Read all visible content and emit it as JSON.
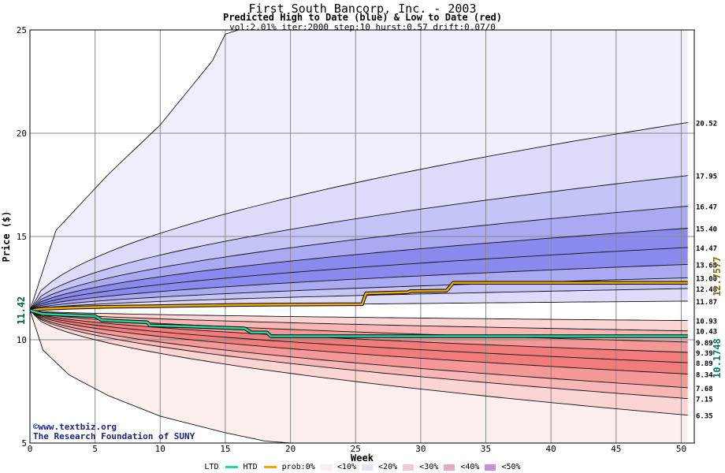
{
  "header": {
    "title": "First South Bancorp, Inc. - 2003",
    "subtitle": "Predicted High to Date (blue) &  Low to Date (red)",
    "params": "vol:2.01% iter:2000 step:10 hurst:0.57 drift:0.07/0"
  },
  "credit": {
    "site": "©www.textbiz.org",
    "org": "The Research Foundation of SUNY"
  },
  "legend": {
    "ltd": "LTD",
    "htd": "HTD",
    "prob": "prob:0%",
    "p10": "<10%",
    "p20": "<20%",
    "p30": "<30%",
    "p40": "<40%",
    "p50": "<50%"
  },
  "colors": {
    "htd_line": "#f0a800",
    "ltd_line": "#20d8a0",
    "blue_bands": [
      "#f0f0fc",
      "#dcdcfa",
      "#c4c4f6",
      "#aaaaf2",
      "#8a8aee"
    ],
    "red_bands": [
      "#fdeeee",
      "#fbd4d4",
      "#f8b6b6",
      "#f59898",
      "#f27c7c"
    ],
    "start_label": "#006633",
    "htd_label": "#8a6d00",
    "ltd_label": "#008060"
  },
  "chart_data": {
    "type": "line",
    "title": "First South Bancorp, Inc. - 2003",
    "xlabel": "Week",
    "ylabel": "Price ($)",
    "xlim": [
      0,
      51
    ],
    "ylim": [
      5,
      25
    ],
    "xticks": [
      0,
      5,
      10,
      15,
      20,
      25,
      30,
      35,
      40,
      45,
      50
    ],
    "yticks": [
      5,
      10,
      15,
      20,
      25
    ],
    "grid": true,
    "start_price": 11.42,
    "start_label": "11.42",
    "current_high_label": "12.7577",
    "current_low_label": "10.1748",
    "quantile_end_values": [
      20.52,
      17.95,
      16.47,
      15.4,
      14.47,
      13.65,
      13.0,
      12.48,
      11.87,
      10.93,
      10.43,
      9.89,
      9.39,
      8.89,
      8.34,
      7.68,
      7.15,
      6.35
    ],
    "quantile_labels": [
      "20.52",
      "17.95",
      "16.47",
      "15.40",
      "14.47",
      "13.65",
      "13.00",
      "12.48",
      "11.87",
      "10.93",
      "10.43",
      "9.89",
      "9.39",
      "8.89",
      "8.34",
      "7.68",
      "7.15",
      "6.35"
    ],
    "outer_envelope": {
      "upper": [
        [
          0,
          11.42
        ],
        [
          2,
          15.3
        ],
        [
          6,
          18.0
        ],
        [
          10,
          20.4
        ],
        [
          14,
          23.5
        ],
        [
          15,
          24.8
        ],
        [
          16,
          25
        ]
      ],
      "lower": [
        [
          0,
          11.42
        ],
        [
          1,
          9.5
        ],
        [
          3,
          8.3
        ],
        [
          6,
          7.3
        ],
        [
          10,
          6.3
        ],
        [
          15,
          5.5
        ],
        [
          18,
          5.1
        ],
        [
          20,
          5.0
        ]
      ]
    },
    "htd_series": {
      "name": "HTD",
      "points": [
        [
          0,
          11.42
        ],
        [
          1,
          11.5
        ],
        [
          3,
          11.55
        ],
        [
          6,
          11.6
        ],
        [
          9,
          11.62
        ],
        [
          12,
          11.65
        ],
        [
          15,
          11.68
        ],
        [
          18,
          11.7
        ],
        [
          25.5,
          11.72
        ],
        [
          25.8,
          12.25
        ],
        [
          29,
          12.3
        ],
        [
          29.2,
          12.35
        ],
        [
          32,
          12.38
        ],
        [
          32.5,
          12.76
        ],
        [
          40,
          12.76
        ],
        [
          50.5,
          12.76
        ]
      ]
    },
    "ltd_series": {
      "name": "LTD",
      "points": [
        [
          0,
          11.42
        ],
        [
          1,
          11.25
        ],
        [
          3,
          11.2
        ],
        [
          5,
          11.15
        ],
        [
          5.5,
          10.95
        ],
        [
          7,
          10.9
        ],
        [
          9,
          10.85
        ],
        [
          9.2,
          10.7
        ],
        [
          12,
          10.65
        ],
        [
          16.5,
          10.55
        ],
        [
          17,
          10.35
        ],
        [
          18.2,
          10.35
        ],
        [
          18.5,
          10.17
        ],
        [
          25,
          10.17
        ],
        [
          35,
          10.17
        ],
        [
          50.5,
          10.17
        ]
      ]
    }
  }
}
